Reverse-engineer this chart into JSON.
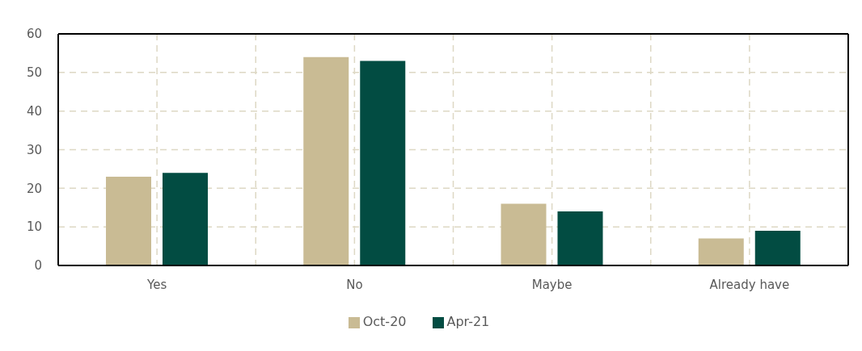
{
  "chart_data": {
    "type": "bar",
    "categories": [
      "Yes",
      "No",
      "Maybe",
      "Already have"
    ],
    "series": [
      {
        "name": "Oct-20",
        "color": "#c9bb94",
        "values": [
          23,
          54,
          16,
          7
        ]
      },
      {
        "name": "Apr-21",
        "color": "#024c42",
        "values": [
          24,
          53,
          14,
          9
        ]
      }
    ],
    "ylim": [
      0,
      60
    ],
    "yticks": [
      0,
      10,
      20,
      30,
      40,
      50,
      60
    ],
    "grid": true,
    "legend": "bottom"
  }
}
